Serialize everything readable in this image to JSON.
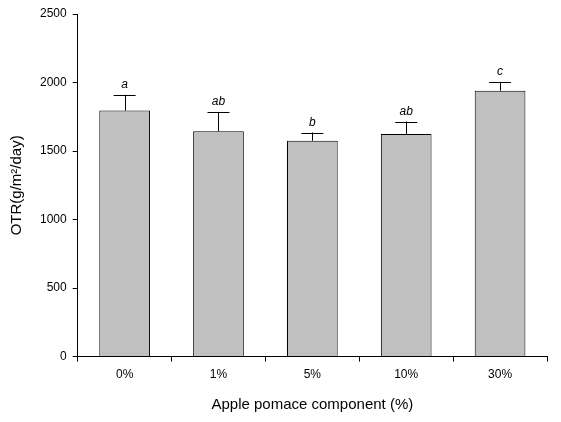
{
  "chart_data": {
    "type": "bar",
    "x_label": "Apple pomace component (%)",
    "y_label": "OTR(g/m²/day)",
    "categories": [
      "0%",
      "1%",
      "5%",
      "10%",
      "30%"
    ],
    "values": [
      1795,
      1645,
      1575,
      1625,
      1940
    ],
    "error": [
      115,
      140,
      60,
      90,
      65
    ],
    "annotations": [
      "a",
      "ab",
      "b",
      "ab",
      "c"
    ],
    "color": "#c0c0c0",
    "ylim": [
      0,
      2500
    ],
    "yticks": [
      0,
      500,
      1000,
      1500,
      2000,
      2500
    ],
    "grid": false
  }
}
